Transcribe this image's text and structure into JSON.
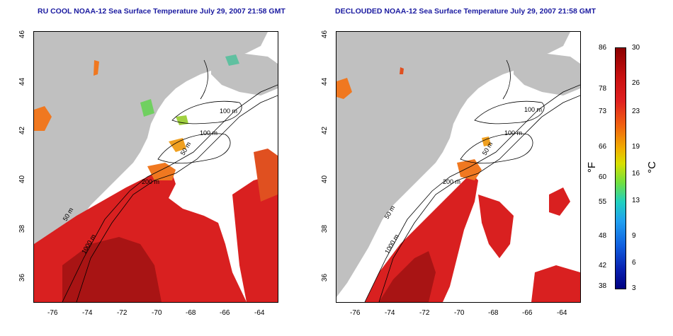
{
  "left_panel": {
    "title": "RU COOL NOAA-12 Sea Surface Temperature July 29, 2007 21:58 GMT"
  },
  "right_panel": {
    "title": "DECLOUDED NOAA-12 Sea Surface Temperature July 29, 2007 21:58 GMT"
  },
  "axes": {
    "lat_ticks": [
      "46",
      "44",
      "42",
      "40",
      "38",
      "36"
    ],
    "lon_ticks": [
      "-76",
      "-74",
      "-72",
      "-70",
      "-68",
      "-66",
      "-64"
    ]
  },
  "contour_labels": {
    "left": [
      "100 m",
      "100 m",
      "50 m",
      "200 m",
      "50 m",
      "1000 m"
    ],
    "right": [
      "100 m",
      "100 m",
      "50 m",
      "200 m",
      "50 m",
      "1000 m"
    ]
  },
  "colorbar": {
    "fahrenheit_ticks": [
      "86",
      "78",
      "73",
      "66",
      "60",
      "55",
      "48",
      "42",
      "38"
    ],
    "celsius_ticks": [
      "30",
      "26",
      "23",
      "19",
      "16",
      "13",
      "9",
      "6",
      "3"
    ],
    "unit_f": "°F",
    "unit_c": "°C"
  },
  "colors": {
    "land": "#c0c0c0",
    "cloud": "#ffffff",
    "warm": "#d92020",
    "hot": "#b01010",
    "orange": "#f07820",
    "title": "#1a1aa0"
  }
}
